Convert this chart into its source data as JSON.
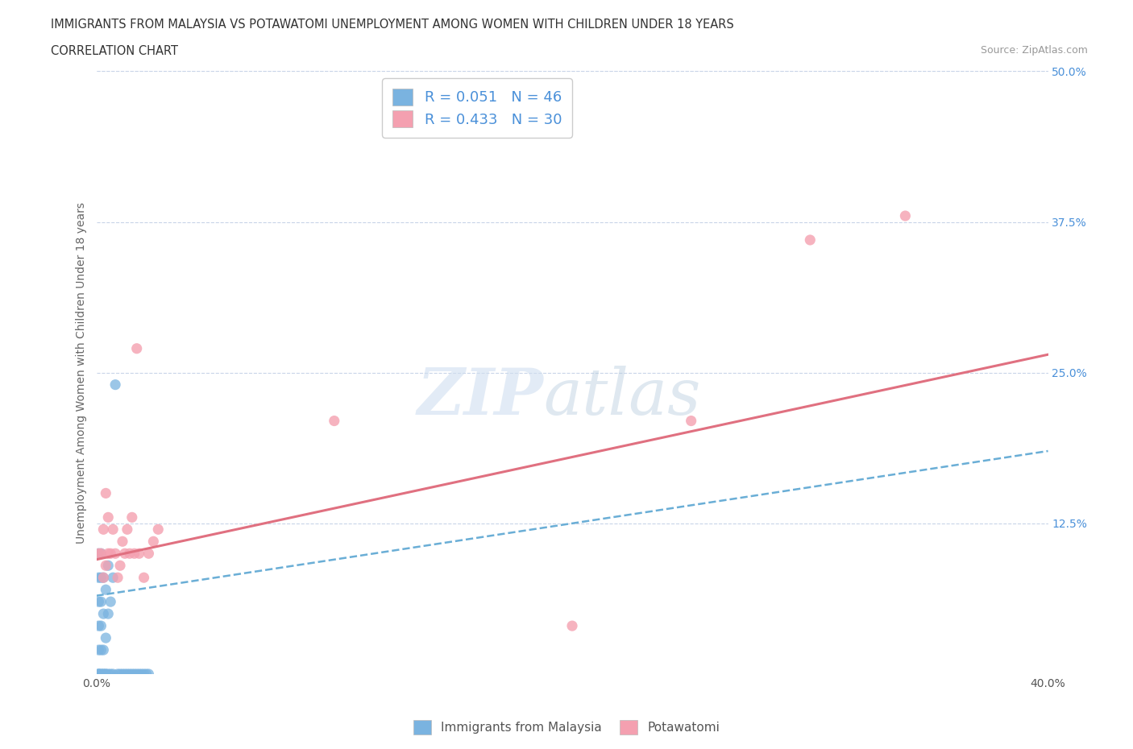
{
  "title_line1": "IMMIGRANTS FROM MALAYSIA VS POTAWATOMI UNEMPLOYMENT AMONG WOMEN WITH CHILDREN UNDER 18 YEARS",
  "title_line2": "CORRELATION CHART",
  "source_text": "Source: ZipAtlas.com",
  "ylabel": "Unemployment Among Women with Children Under 18 years",
  "xlim": [
    0.0,
    0.4
  ],
  "ylim": [
    0.0,
    0.5
  ],
  "ytick_values": [
    0.0,
    0.125,
    0.25,
    0.375,
    0.5
  ],
  "xtick_values": [
    0.0,
    0.05,
    0.1,
    0.15,
    0.2,
    0.25,
    0.3,
    0.35,
    0.4
  ],
  "blue_color": "#7ab3e0",
  "pink_color": "#f4a0b0",
  "trendline_blue_color": "#6aaed6",
  "trendline_pink_color": "#e07080",
  "legend_text_color": "#4a90d9",
  "title_color": "#333333",
  "grid_color": "#c8d4e8",
  "background_color": "#ffffff",
  "R_blue": 0.051,
  "N_blue": 46,
  "R_pink": 0.433,
  "N_pink": 30,
  "blue_trendline": [
    0.065,
    0.185
  ],
  "pink_trendline": [
    0.095,
    0.265
  ],
  "blue_points_x": [
    0.001,
    0.001,
    0.001,
    0.001,
    0.001,
    0.001,
    0.001,
    0.001,
    0.002,
    0.002,
    0.002,
    0.002,
    0.002,
    0.002,
    0.002,
    0.003,
    0.003,
    0.003,
    0.003,
    0.003,
    0.004,
    0.004,
    0.004,
    0.004,
    0.005,
    0.005,
    0.005,
    0.006,
    0.006,
    0.007,
    0.007,
    0.008,
    0.009,
    0.01,
    0.011,
    0.012,
    0.013,
    0.014,
    0.015,
    0.016,
    0.017,
    0.018,
    0.019,
    0.02,
    0.021,
    0.022
  ],
  "blue_points_y": [
    0.0,
    0.0,
    0.0,
    0.02,
    0.04,
    0.06,
    0.08,
    0.1,
    0.0,
    0.0,
    0.02,
    0.04,
    0.06,
    0.08,
    0.1,
    0.0,
    0.0,
    0.02,
    0.05,
    0.08,
    0.0,
    0.0,
    0.03,
    0.07,
    0.0,
    0.05,
    0.09,
    0.0,
    0.06,
    0.0,
    0.08,
    0.24,
    0.0,
    0.0,
    0.0,
    0.0,
    0.0,
    0.0,
    0.0,
    0.0,
    0.0,
    0.0,
    0.0,
    0.0,
    0.0,
    0.0
  ],
  "pink_points_x": [
    0.001,
    0.002,
    0.003,
    0.003,
    0.004,
    0.004,
    0.005,
    0.005,
    0.006,
    0.007,
    0.008,
    0.009,
    0.01,
    0.011,
    0.012,
    0.013,
    0.014,
    0.015,
    0.016,
    0.017,
    0.018,
    0.02,
    0.022,
    0.024,
    0.026,
    0.1,
    0.2,
    0.25,
    0.3,
    0.34
  ],
  "pink_points_y": [
    0.1,
    0.1,
    0.08,
    0.12,
    0.09,
    0.15,
    0.1,
    0.13,
    0.1,
    0.12,
    0.1,
    0.08,
    0.09,
    0.11,
    0.1,
    0.12,
    0.1,
    0.13,
    0.1,
    0.27,
    0.1,
    0.08,
    0.1,
    0.11,
    0.12,
    0.21,
    0.04,
    0.21,
    0.36,
    0.38
  ]
}
